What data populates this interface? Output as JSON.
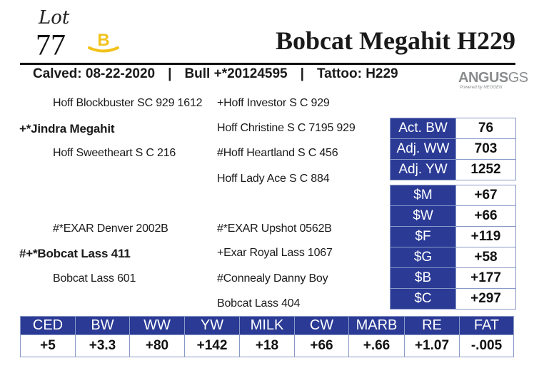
{
  "lot": {
    "label": "Lot",
    "number": "77"
  },
  "badge": {
    "letter": "B",
    "color": "#f2c21b"
  },
  "animal_name": "Bobcat Megahit H229",
  "subline": {
    "calved": "Calved: 08-22-2020",
    "sep1": "|",
    "registration": "Bull +*20124595",
    "sep2": "|",
    "tattoo": "Tattoo: H229"
  },
  "logo": {
    "main": "ANGUS",
    "suffix": "GS",
    "sub": "Powered by NEOGEN"
  },
  "pedigree": {
    "sire": "+*Jindra Megahit",
    "sire_sire": "Hoff Blockbuster SC 929 1612",
    "sire_dam": "Hoff Sweetheart S C 216",
    "sire_sire_sire": "+Hoff Investor S C 929",
    "sire_sire_dam": "Hoff Christine S C 7195 929",
    "sire_dam_sire": "#Hoff Heartland S C 456",
    "sire_dam_dam": "Hoff Lady Ace S C 884",
    "dam": "#+*Bobcat Lass 411",
    "dam_sire": "#*EXAR Denver 2002B",
    "dam_dam": "Bobcat Lass 601",
    "dam_sire_sire": "#*EXAR Upshot 0562B",
    "dam_sire_dam": "+Exar Royal Lass 1067",
    "dam_dam_sire": "#Connealy Danny Boy",
    "dam_dam_dam": "Bobcat Lass 404"
  },
  "weights": [
    {
      "label": "Act. BW",
      "value": "76"
    },
    {
      "label": "Adj. WW",
      "value": "703"
    },
    {
      "label": "Adj. YW",
      "value": "1252"
    }
  ],
  "indexes": [
    {
      "label": "$M",
      "value": "+67"
    },
    {
      "label": "$W",
      "value": "+66"
    },
    {
      "label": "$F",
      "value": "+119"
    },
    {
      "label": "$G",
      "value": "+58"
    },
    {
      "label": "$B",
      "value": "+177"
    },
    {
      "label": "$C",
      "value": "+297"
    }
  ],
  "epds": {
    "headers": [
      "CED",
      "BW",
      "WW",
      "YW",
      "MILK",
      "CW",
      "MARB",
      "RE",
      "FAT"
    ],
    "values": [
      "+5",
      "+3.3",
      "+80",
      "+142",
      "+18",
      "+66",
      "+.66",
      "+1.07",
      "-.005"
    ]
  },
  "colors": {
    "table_header": "#2a3a95",
    "border": "#8a9ac8",
    "logo_gray": "#8a8c8e"
  }
}
